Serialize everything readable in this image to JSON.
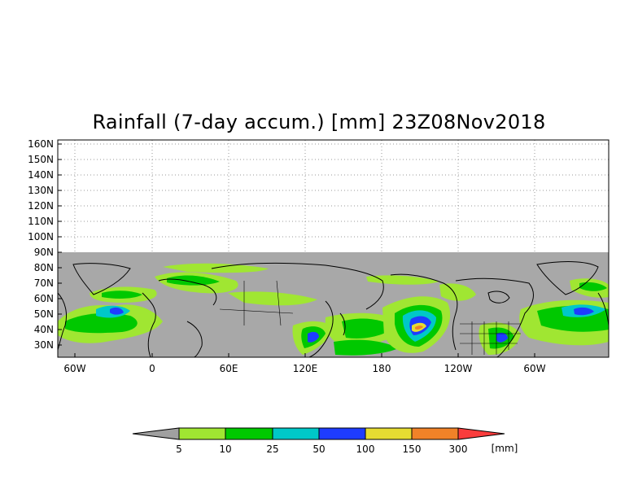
{
  "title": "Rainfall (7-day accum.) [mm] 23Z08Nov2018",
  "latitude_labels": [
    "160N",
    "150N",
    "140N",
    "130N",
    "120N",
    "110N",
    "100N",
    "90N",
    "80N",
    "70N",
    "60N",
    "50N",
    "40N",
    "30N"
  ],
  "longitude_labels": [
    "60W",
    "0",
    "60E",
    "120E",
    "180",
    "120W",
    "60W"
  ],
  "colorbar": {
    "unit": "[mm]",
    "levels": [
      "5",
      "10",
      "25",
      "50",
      "100",
      "150",
      "300"
    ],
    "colors": {
      "below": "#a0a0a0",
      "5-10": "#a0e632",
      "10-25": "#00c800",
      "25-50": "#00c8c8",
      "50-100": "#1e3cff",
      "100-150": "#e6dc32",
      "150-300": "#f08228",
      "above": "#fa3c3c"
    }
  },
  "map_colors": {
    "ocean_land_background": "#a8a8a8",
    "coastline": "#000000",
    "grid": "#9a9a9a"
  }
}
